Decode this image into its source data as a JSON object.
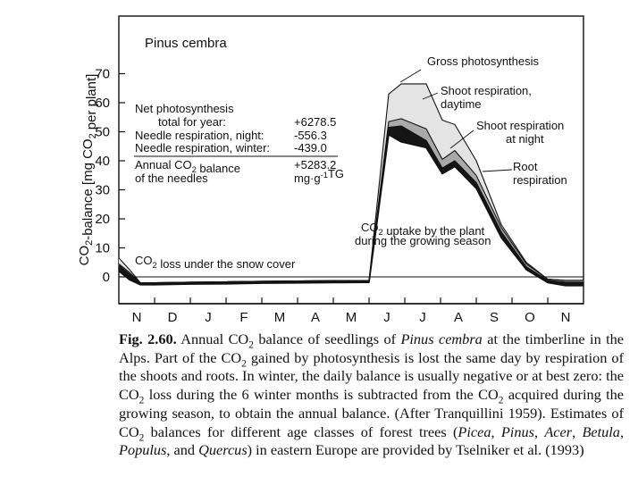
{
  "chart_data": {
    "type": "area",
    "title": "Pinus cembra",
    "ylabel": "CO2-balance [mg CO2 per plant]",
    "xlabel": "",
    "ylim": [
      -10,
      80
    ],
    "yticks": [
      0,
      10,
      20,
      30,
      40,
      50,
      60,
      70
    ],
    "months": [
      "N",
      "D",
      "J",
      "F",
      "M",
      "A",
      "M",
      "J",
      "J",
      "A",
      "S",
      "O",
      "N"
    ],
    "x": [
      0,
      0.3,
      0.6,
      1,
      2,
      3,
      4,
      5,
      6,
      7,
      7.55,
      7.9,
      8.6,
      9.05,
      9.4,
      10,
      10.7,
      11.4,
      12,
      12.5,
      13
    ],
    "series": [
      {
        "name": "Gross photosynthesis",
        "values": [
          6.5,
          2.5,
          -2,
          -2,
          -1.8,
          -1.7,
          -1.5,
          -1.4,
          -1.3,
          -1.2,
          63,
          66.5,
          66.5,
          54,
          52.5,
          40,
          18,
          5,
          -0.8,
          -1.2,
          -1.2
        ]
      },
      {
        "name": "Shoot respiration, daytime",
        "values": [
          4.5,
          1.5,
          -2,
          -2,
          -1.8,
          -1.7,
          -1.5,
          -1.4,
          -1.3,
          -1.2,
          53.5,
          54.5,
          51,
          40.5,
          43.5,
          35,
          17,
          4.5,
          -0.8,
          -1.2,
          -1.2
        ]
      },
      {
        "name": "Shoot respiration at night",
        "values": [
          4,
          1,
          -2,
          -2,
          -1.8,
          -1.7,
          -1.5,
          -1.4,
          -1.3,
          -1.2,
          51.5,
          52,
          47,
          37.5,
          40,
          32.5,
          15.5,
          3.5,
          -1.2,
          -1.8,
          -1.8
        ]
      },
      {
        "name": "Root respiration",
        "values": [
          2,
          -1,
          -2.7,
          -2.7,
          -2.5,
          -2.4,
          -2.2,
          -2.1,
          -2,
          -1.9,
          49,
          46.5,
          44.5,
          35.5,
          38,
          30.5,
          13.5,
          2.5,
          -2,
          -3,
          -3
        ]
      }
    ],
    "annotations": {
      "gross_photosynthesis": "Gross photosynthesis",
      "shoot_respiration_daytime_1": "Shoot respiration,",
      "shoot_respiration_daytime_2": "daytime",
      "shoot_respiration_night_1": "Shoot respiration",
      "shoot_respiration_night_2": "at night",
      "root_respiration_1": "Root",
      "root_respiration_2": "respiration",
      "uptake_1": "CO2 uptake by the plant",
      "uptake_2": "during the growing season",
      "snow_loss": "CO2 loss under the snow cover"
    },
    "balance_table": {
      "net_photosynthesis_label_1": "Net photosynthesis",
      "net_photosynthesis_label_2": "total for year:",
      "net_photosynthesis_value": "+6278.5",
      "needle_night_label": "Needle respiration, night:",
      "needle_night_value": "-556.3",
      "needle_winter_label": "Needle respiration, winter:",
      "needle_winter_value": "-439.0",
      "annual_label_1": "Annual CO2 balance",
      "annual_label_2": "of the needles",
      "annual_value": "+5283.2",
      "annual_unit": "mg·g-1TG"
    },
    "grid": false,
    "legend": "none"
  },
  "caption": {
    "label": "Fig. 2.60.",
    "text": " Annual CO2 balance of seedlings of Pinus cembra at the timberline in the Alps. Part of the CO2 gained by photosynthesis is lost the same day by respiration of the shoots and roots. In winter, the daily balance is usually negative or at best zero: the CO2 loss during the 6 winter months is subtracted from the CO2 acquired during the growing season, to obtain the annual balance. (After Tranquillini 1959). Estimates of CO2 balances for different age classes of forest trees (Picea, Pinus, Acer, Betula, Populus, and Quercus) in eastern Europe are provided by Tselniker et al. (1993)"
  }
}
